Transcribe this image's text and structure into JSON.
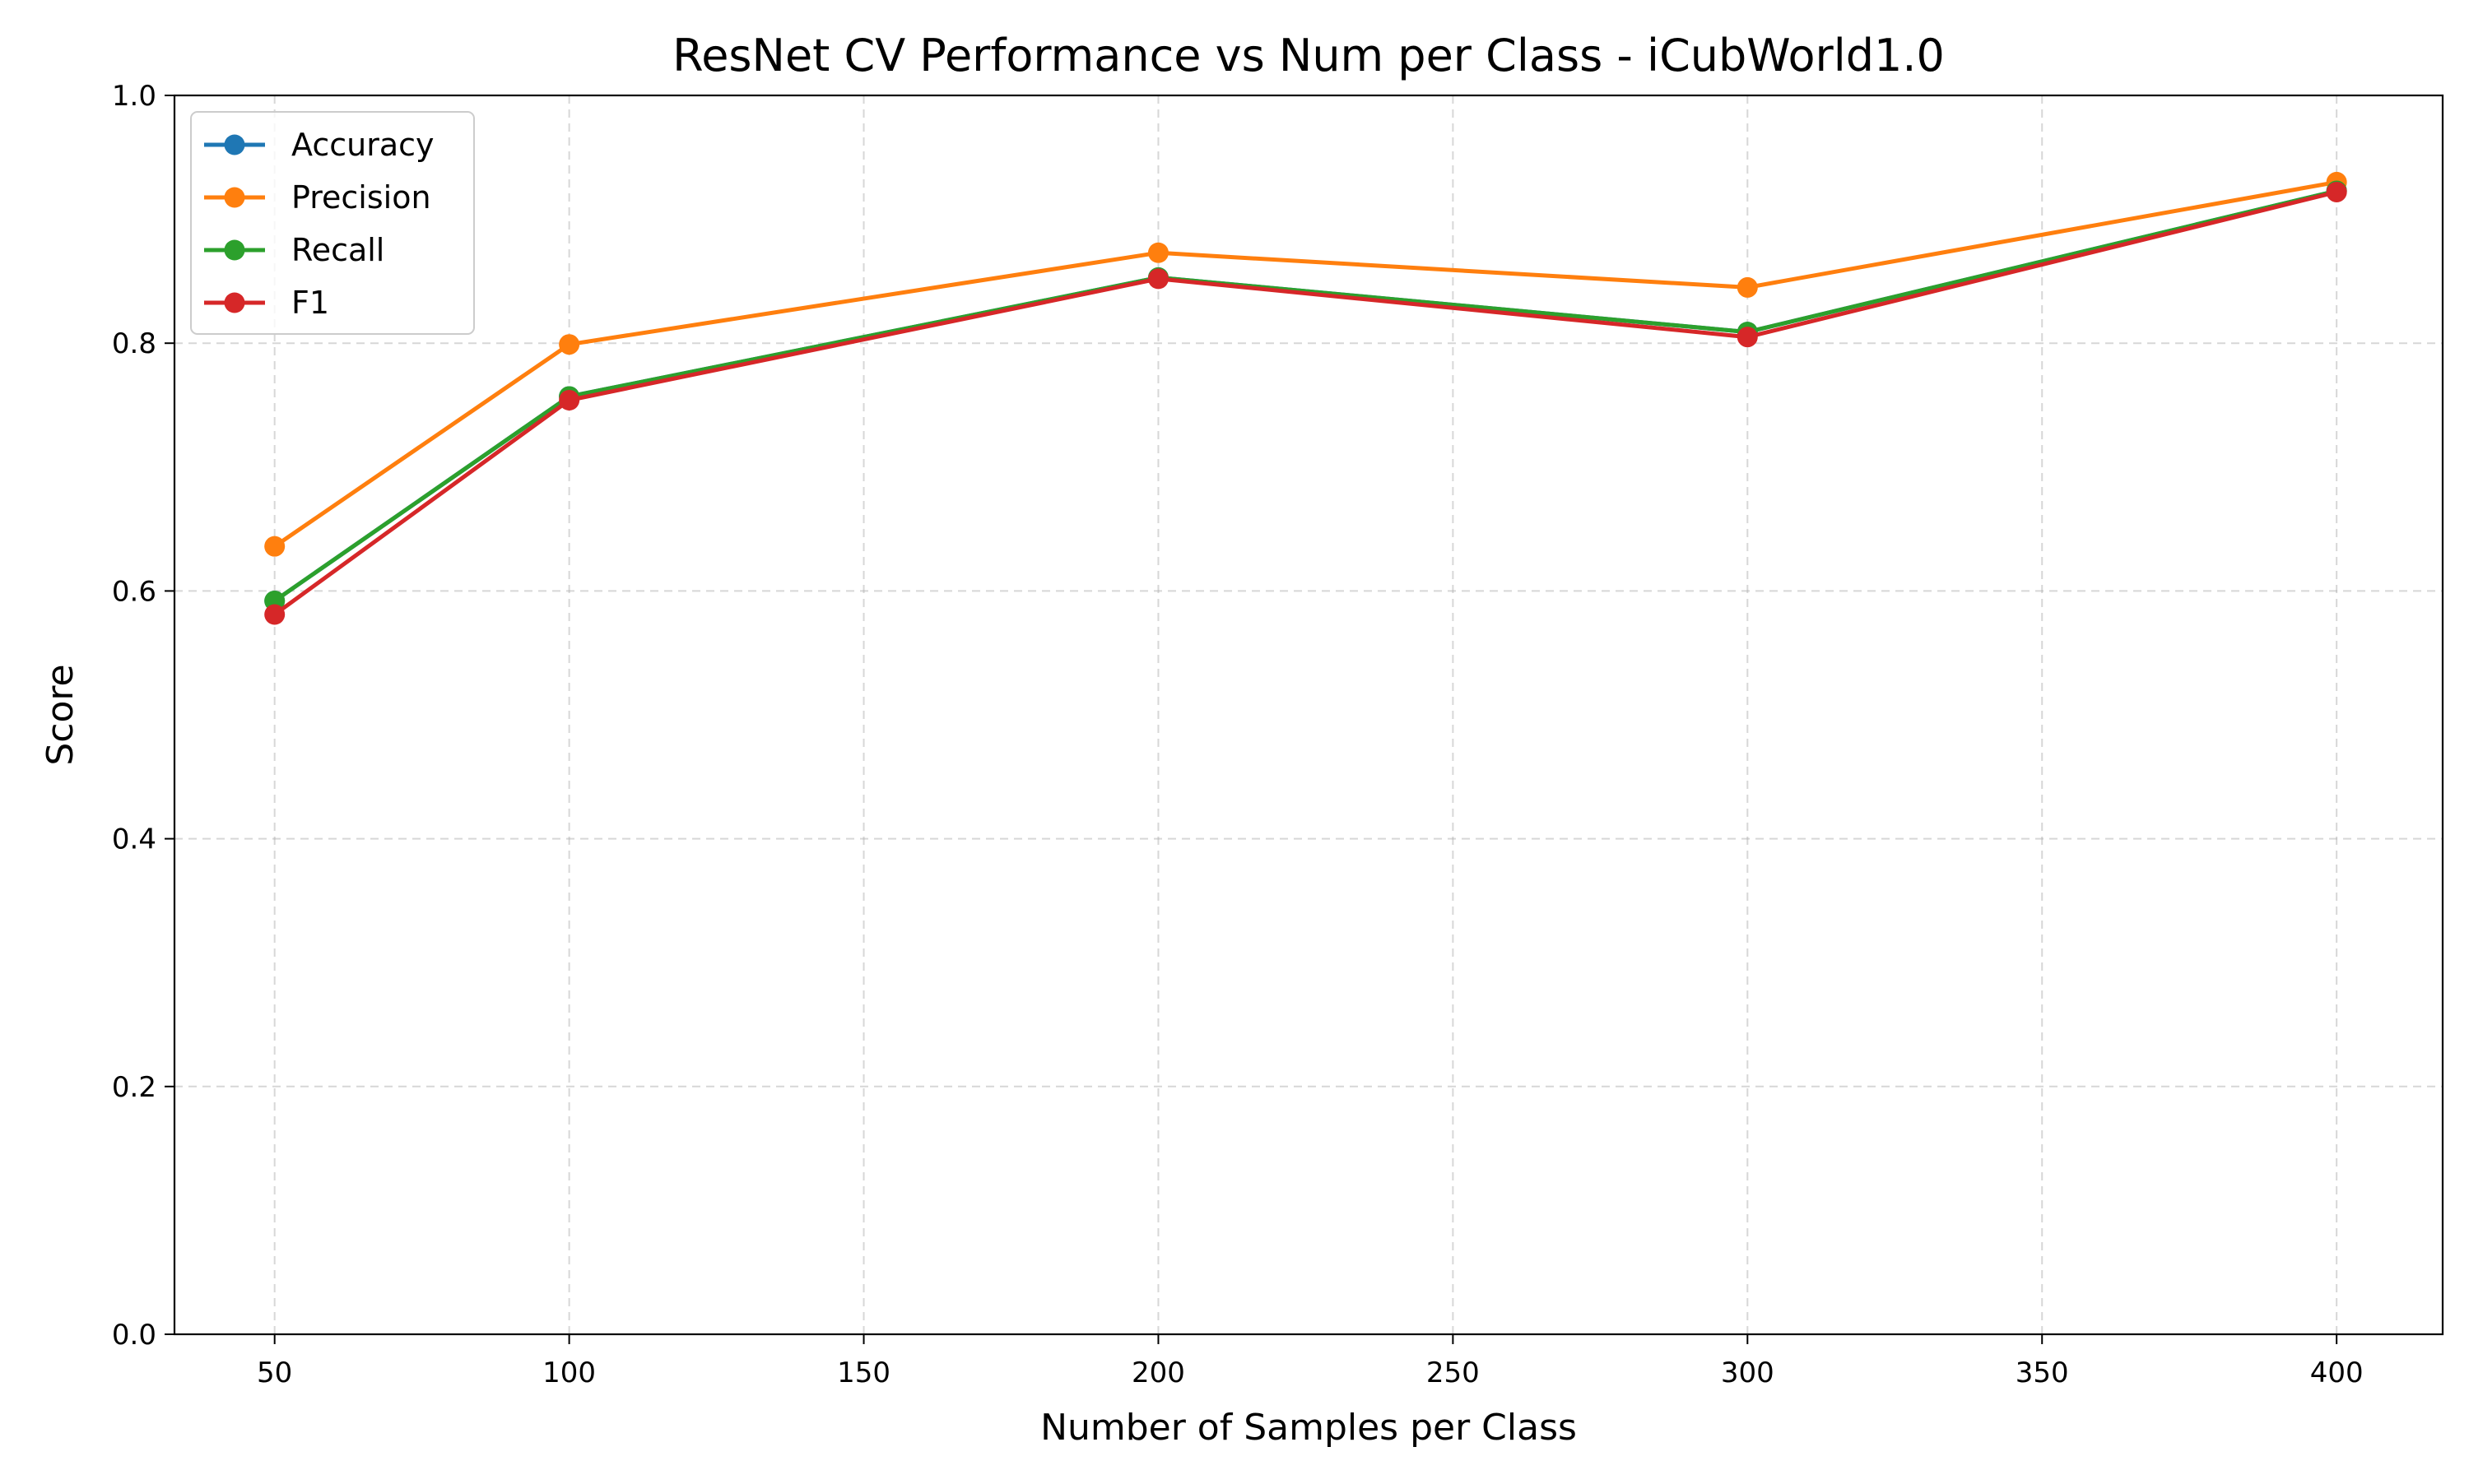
{
  "chart_data": {
    "type": "line",
    "title": "ResNet CV Performance vs Num per Class - iCubWorld1.0",
    "xlabel": "Number of Samples per Class",
    "ylabel": "Score",
    "x": [
      50,
      100,
      200,
      300,
      400
    ],
    "xlim": [
      33,
      418
    ],
    "ylim": [
      0.0,
      1.0
    ],
    "xticks": [
      50,
      100,
      150,
      200,
      250,
      300,
      350,
      400
    ],
    "xtick_labels": [
      "50",
      "100",
      "150",
      "200",
      "250",
      "300",
      "350",
      "400"
    ],
    "yticks": [
      0.0,
      0.2,
      0.4,
      0.6,
      0.8,
      1.0
    ],
    "ytick_labels": [
      "0.0",
      "0.2",
      "0.4",
      "0.6",
      "0.8",
      "1.0"
    ],
    "grid": true,
    "legend_position": "top-left",
    "marker": "circle",
    "series": [
      {
        "name": "Accuracy",
        "color": "#1f77b4",
        "values": [
          0.592,
          0.757,
          0.853,
          0.809,
          0.923
        ]
      },
      {
        "name": "Precision",
        "color": "#ff7f0e",
        "values": [
          0.636,
          0.799,
          0.873,
          0.845,
          0.93
        ]
      },
      {
        "name": "Recall",
        "color": "#2ca02c",
        "values": [
          0.592,
          0.757,
          0.853,
          0.809,
          0.923
        ]
      },
      {
        "name": "F1",
        "color": "#d62728",
        "values": [
          0.581,
          0.754,
          0.852,
          0.805,
          0.922
        ]
      }
    ]
  }
}
